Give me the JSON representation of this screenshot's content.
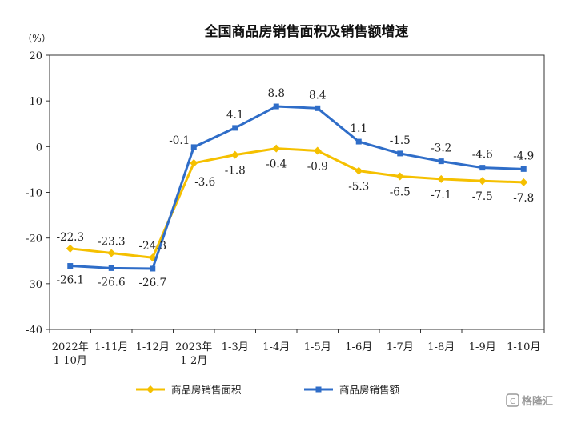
{
  "chart_data": {
    "type": "line",
    "title": "全国商品房销售面积及销售额增速",
    "ylabel": "（%）",
    "xlabel": "",
    "ylim": [
      -40,
      20
    ],
    "yticks": [
      20,
      10,
      0,
      -10,
      -20,
      -30,
      -40
    ],
    "grid": false,
    "legend": "bottom-center",
    "categories": [
      [
        "2022年",
        "1-10月"
      ],
      [
        "1-11月"
      ],
      [
        "1-12月"
      ],
      [
        "2023年",
        "1-2月"
      ],
      [
        "1-3月"
      ],
      [
        "1-4月"
      ],
      [
        "1-5月"
      ],
      [
        "1-6月"
      ],
      [
        "1-7月"
      ],
      [
        "1-8月"
      ],
      [
        "1-9月"
      ],
      [
        "1-10月"
      ]
    ],
    "series": [
      {
        "name": "商品房销售面积",
        "color": "#F5C000",
        "marker": "diamond",
        "values": [
          -22.3,
          -23.3,
          -24.3,
          -3.6,
          -1.8,
          -0.4,
          -0.9,
          -5.3,
          -6.5,
          -7.1,
          -7.5,
          -7.8
        ],
        "labels": [
          "-22.3",
          "-23.3",
          "-24.3",
          "-3.6",
          "-1.8",
          "-0.4",
          "-0.9",
          "-5.3",
          "-6.5",
          "-7.1",
          "-7.5",
          "-7.8"
        ]
      },
      {
        "name": "商品房销售额",
        "color": "#2F6DC8",
        "marker": "square",
        "values": [
          -26.1,
          -26.6,
          -26.7,
          -0.1,
          4.1,
          8.8,
          8.4,
          1.1,
          -1.5,
          -3.2,
          -4.6,
          -4.9
        ],
        "labels": [
          "-26.1",
          "-26.6",
          "-26.7",
          "-0.1",
          "4.1",
          "8.8",
          "8.4",
          "1.1",
          "-1.5",
          "-3.2",
          "-4.6",
          "-4.9"
        ]
      }
    ]
  },
  "watermark": {
    "text": "格隆汇",
    "icon": "gelonghui-logo-icon"
  }
}
